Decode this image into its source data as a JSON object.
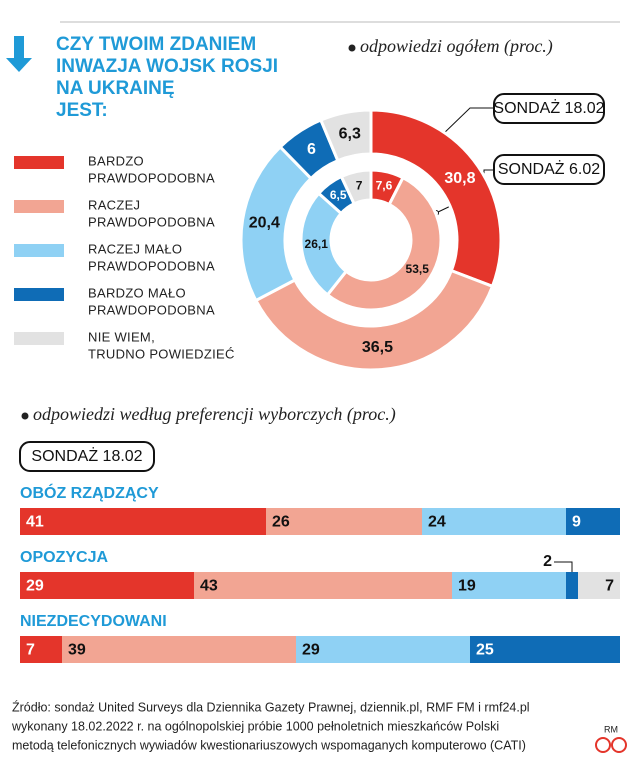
{
  "chart_data": [
    {
      "type": "donut",
      "title": [
        "CZY TWOIM ZDANIEM",
        "INWAZJA WOJSK ROSJI",
        "NA UKRAINĘ",
        "JEST:"
      ],
      "subtitle": "odpowiedzi ogółem (proc.)",
      "categories": [
        [
          "BARDZO",
          "PRAWDOPODOBNA"
        ],
        [
          "RACZEJ",
          "PRAWDOPODOBNA"
        ],
        [
          "RACZEJ MAŁO",
          "PRAWDOPODOBNA"
        ],
        [
          "BARDZO MAŁO",
          "PRAWDOPODOBNA"
        ],
        [
          "NIE WIEM,",
          "TRUDNO POWIEDZIEĆ"
        ]
      ],
      "colors": [
        "#e4352b",
        "#f2a593",
        "#8fd1f4",
        "#0f6cb6",
        "#e2e2e2"
      ],
      "series": [
        {
          "name": "SONDAŻ 18.02",
          "values": [
            30.8,
            36.5,
            20.4,
            6,
            6.3
          ],
          "value_labels": [
            "30,8",
            "36,5",
            "20,4",
            "6",
            "6,3"
          ]
        },
        {
          "name": "SONDAŻ 6.02",
          "values": [
            7.6,
            53.5,
            26.1,
            6.5,
            7
          ],
          "value_labels": [
            "7,6",
            "53,5",
            "26,1",
            "6,5",
            "7"
          ]
        }
      ]
    },
    {
      "type": "stacked_bar",
      "subtitle": "odpowiedzi według preferencji wyborczych (proc.)",
      "label": "SONDAŻ 18.02",
      "categories": [
        "OBÓZ RZĄDZĄCY",
        "OPOZYCJA",
        "NIEZDECYDOWANI"
      ],
      "series": [
        {
          "color": "#e4352b",
          "values": [
            41,
            29,
            7
          ]
        },
        {
          "color": "#f2a593",
          "values": [
            26,
            43,
            39
          ]
        },
        {
          "color": "#8fd1f4",
          "values": [
            24,
            19,
            29
          ]
        },
        {
          "color": "#0f6cb6",
          "values": [
            9,
            2,
            25
          ]
        },
        {
          "color": "#e2e2e2",
          "values": [
            null,
            7,
            null
          ]
        }
      ]
    }
  ],
  "footer": [
    "Źródło: sondaż United Surveys dla Dziennika Gazety Prawnej, dziennik.pl, RMF FM i rmf24.pl",
    "wykonany 18.02.2022 r. na ogólnopolskiej próbie 1000 pełnoletnich mieszkańców Polski",
    "metodą telefonicznych wywiadów kwestionariuszowych wspomaganych komputerowo (CATI)"
  ],
  "credit": "RM"
}
